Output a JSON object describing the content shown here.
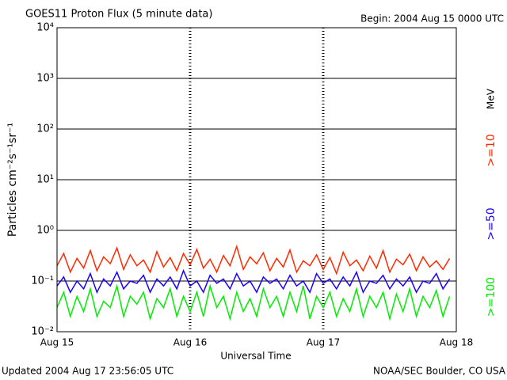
{
  "chart_data": {
    "type": "line",
    "title": "GOES11 Proton Flux (5 minute data)",
    "subtitle": "Begin: 2004 Aug 15 0000 UTC",
    "y_label": "Particles cm⁻²s⁻¹sr⁻¹",
    "x_label": "Universal Time",
    "footer_left": "Updated 2004 Aug 17 23:56:05 UTC",
    "footer_right": "NOAA/SEC Boulder, CO USA",
    "legend_unit": "MeV",
    "log_y": true,
    "grid": true,
    "xlim": [
      0,
      3
    ],
    "xticks": [
      {
        "value": 0,
        "label": "Aug 15"
      },
      {
        "value": 1,
        "label": "Aug 16"
      },
      {
        "value": 2,
        "label": "Aug 17"
      },
      {
        "value": 3,
        "label": "Aug 18"
      }
    ],
    "ylim": [
      0.01,
      10000
    ],
    "yticks": [
      {
        "value": 0.01,
        "label": "10⁻²"
      },
      {
        "value": 0.1,
        "label": "10⁻¹"
      },
      {
        "value": 1,
        "label": "10⁰"
      },
      {
        "value": 10,
        "label": "10¹"
      },
      {
        "value": 100,
        "label": "10²"
      },
      {
        "value": 1000,
        "label": "10³"
      },
      {
        "value": 10000,
        "label": "10⁴"
      }
    ],
    "x": [
      0,
      0.05,
      0.1,
      0.15,
      0.2,
      0.25,
      0.3,
      0.35,
      0.4,
      0.45,
      0.5,
      0.55,
      0.6,
      0.65,
      0.7,
      0.75,
      0.8,
      0.85,
      0.9,
      0.95,
      1,
      1.05,
      1.1,
      1.15,
      1.2,
      1.25,
      1.3,
      1.35,
      1.4,
      1.45,
      1.5,
      1.55,
      1.6,
      1.65,
      1.7,
      1.75,
      1.8,
      1.85,
      1.9,
      1.95,
      2,
      2.05,
      2.1,
      2.15,
      2.2,
      2.25,
      2.3,
      2.35,
      2.4,
      2.45,
      2.5,
      2.55,
      2.6,
      2.65,
      2.7,
      2.75,
      2.8,
      2.85,
      2.9,
      2.95
    ],
    "series": [
      {
        "name": ">=10",
        "color": "#ff2a00",
        "values": [
          0.2,
          0.35,
          0.15,
          0.28,
          0.18,
          0.4,
          0.16,
          0.3,
          0.22,
          0.45,
          0.17,
          0.33,
          0.2,
          0.26,
          0.15,
          0.38,
          0.19,
          0.29,
          0.16,
          0.35,
          0.21,
          0.42,
          0.18,
          0.27,
          0.15,
          0.32,
          0.2,
          0.48,
          0.17,
          0.3,
          0.22,
          0.36,
          0.16,
          0.28,
          0.19,
          0.41,
          0.15,
          0.25,
          0.2,
          0.33,
          0.17,
          0.29,
          0.14,
          0.37,
          0.2,
          0.26,
          0.16,
          0.31,
          0.18,
          0.4,
          0.15,
          0.27,
          0.21,
          0.34,
          0.16,
          0.3,
          0.19,
          0.25,
          0.17,
          0.28
        ]
      },
      {
        "name": ">=50",
        "color": "#1a00ff",
        "values": [
          0.08,
          0.12,
          0.06,
          0.1,
          0.07,
          0.14,
          0.06,
          0.11,
          0.08,
          0.15,
          0.07,
          0.1,
          0.09,
          0.13,
          0.06,
          0.11,
          0.08,
          0.12,
          0.07,
          0.16,
          0.08,
          0.1,
          0.06,
          0.13,
          0.09,
          0.11,
          0.07,
          0.14,
          0.08,
          0.1,
          0.06,
          0.12,
          0.09,
          0.11,
          0.07,
          0.13,
          0.08,
          0.1,
          0.06,
          0.14,
          0.09,
          0.11,
          0.07,
          0.12,
          0.08,
          0.15,
          0.06,
          0.1,
          0.09,
          0.13,
          0.07,
          0.11,
          0.08,
          0.12,
          0.06,
          0.1,
          0.09,
          0.14,
          0.07,
          0.11
        ]
      },
      {
        "name": ">=100",
        "color": "#00ee00",
        "values": [
          0.03,
          0.06,
          0.02,
          0.05,
          0.025,
          0.07,
          0.02,
          0.04,
          0.03,
          0.08,
          0.02,
          0.05,
          0.035,
          0.06,
          0.018,
          0.045,
          0.03,
          0.07,
          0.02,
          0.05,
          0.025,
          0.06,
          0.02,
          0.08,
          0.03,
          0.05,
          0.018,
          0.06,
          0.025,
          0.045,
          0.02,
          0.07,
          0.03,
          0.05,
          0.02,
          0.06,
          0.025,
          0.08,
          0.018,
          0.05,
          0.03,
          0.06,
          0.02,
          0.045,
          0.025,
          0.07,
          0.02,
          0.05,
          0.03,
          0.06,
          0.018,
          0.055,
          0.025,
          0.07,
          0.02,
          0.05,
          0.03,
          0.065,
          0.02,
          0.05
        ]
      }
    ]
  }
}
